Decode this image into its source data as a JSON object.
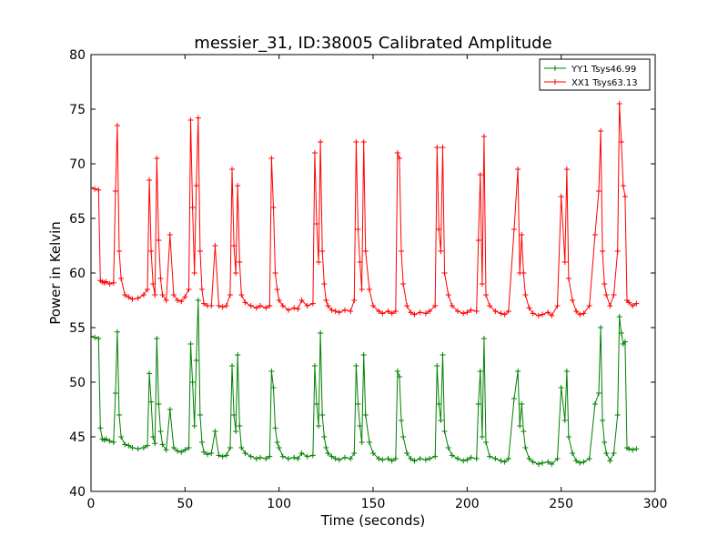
{
  "chart_data": {
    "type": "line",
    "title": "messier_31, ID:38005 Calibrated Amplitude",
    "xlabel": "Time (seconds)",
    "ylabel": "Power in Kelvin",
    "xlim": [
      0,
      300
    ],
    "ylim": [
      40,
      80
    ],
    "xticks": [
      "0",
      "50",
      "100",
      "150",
      "200",
      "250",
      "300"
    ],
    "yticks": [
      "40",
      "45",
      "50",
      "55",
      "60",
      "65",
      "70",
      "75",
      "80"
    ],
    "grid": false,
    "legend_position": "top-right",
    "series": [
      {
        "name": "YY1 Tsys46.99",
        "color": "#008000",
        "marker": "+",
        "x": [
          0,
          2,
          4,
          5,
          6,
          7,
          8,
          10,
          12,
          13,
          14,
          15,
          16,
          18,
          20,
          22,
          25,
          28,
          30,
          31,
          32,
          33,
          34,
          35,
          36,
          37,
          38,
          40,
          42,
          44,
          46,
          48,
          50,
          52,
          53,
          54,
          55,
          56,
          57,
          58,
          59,
          60,
          62,
          64,
          66,
          68,
          70,
          72,
          74,
          75,
          76,
          77,
          78,
          79,
          80,
          82,
          85,
          88,
          90,
          93,
          95,
          96,
          97,
          98,
          99,
          100,
          102,
          105,
          108,
          110,
          112,
          115,
          118,
          119,
          120,
          121,
          122,
          123,
          124,
          125,
          126,
          128,
          130,
          132,
          135,
          138,
          140,
          141,
          142,
          143,
          144,
          145,
          146,
          148,
          150,
          153,
          155,
          158,
          160,
          162,
          163,
          164,
          165,
          166,
          168,
          170,
          172,
          175,
          178,
          180,
          183,
          184,
          185,
          186,
          187,
          188,
          190,
          192,
          195,
          198,
          200,
          202,
          205,
          206,
          207,
          208,
          209,
          210,
          212,
          215,
          218,
          220,
          222,
          225,
          227,
          228,
          229,
          230,
          231,
          233,
          235,
          238,
          240,
          243,
          245,
          248,
          250,
          252,
          253,
          254,
          256,
          258,
          260,
          262,
          265,
          268,
          270,
          271,
          272,
          273,
          274,
          276,
          278,
          280,
          281,
          282,
          283,
          284,
          285,
          286,
          288,
          290
        ],
        "values": [
          54.2,
          54.1,
          54.0,
          45.8,
          44.8,
          44.7,
          44.8,
          44.6,
          44.5,
          49.0,
          54.6,
          47.0,
          45.0,
          44.3,
          44.2,
          44.0,
          43.9,
          44.0,
          44.2,
          50.8,
          48.2,
          45.0,
          44.4,
          54.0,
          48.0,
          45.5,
          44.3,
          43.8,
          47.5,
          44.0,
          43.7,
          43.6,
          43.8,
          44.0,
          53.5,
          50.0,
          46.0,
          52.0,
          57.5,
          47.0,
          44.5,
          43.6,
          43.4,
          43.5,
          45.5,
          43.3,
          43.2,
          43.3,
          44.0,
          51.5,
          47.0,
          45.5,
          52.5,
          46.0,
          44.0,
          43.5,
          43.2,
          43.0,
          43.1,
          43.0,
          43.2,
          51.0,
          49.5,
          45.8,
          44.5,
          44.0,
          43.2,
          43.0,
          43.1,
          43.0,
          43.5,
          43.2,
          43.3,
          51.5,
          48.0,
          46.0,
          54.5,
          47.0,
          45.0,
          44.0,
          43.5,
          43.2,
          43.0,
          42.9,
          43.1,
          43.0,
          43.5,
          51.5,
          48.0,
          46.0,
          44.5,
          52.5,
          47.0,
          44.5,
          43.5,
          43.0,
          42.9,
          43.0,
          42.8,
          43.0,
          51.0,
          50.5,
          46.5,
          45.0,
          43.5,
          43.0,
          42.8,
          43.0,
          42.9,
          43.0,
          43.2,
          51.5,
          48.0,
          46.5,
          52.5,
          45.5,
          44.0,
          43.3,
          43.0,
          42.8,
          42.9,
          43.1,
          43.0,
          48.0,
          51.0,
          45.0,
          54.0,
          44.5,
          43.2,
          43.0,
          42.8,
          42.7,
          43.0,
          48.5,
          51.0,
          46.0,
          48.0,
          45.5,
          44.0,
          43.0,
          42.7,
          42.5,
          42.6,
          42.7,
          42.5,
          43.0,
          49.5,
          46.5,
          51.0,
          45.0,
          43.5,
          42.8,
          42.6,
          42.7,
          43.0,
          48.0,
          49.0,
          55.0,
          46.5,
          44.5,
          43.5,
          42.8,
          43.5,
          47.0,
          56.0,
          54.5,
          53.5,
          53.7,
          44.0,
          43.9,
          43.8,
          43.9
        ]
      },
      {
        "name": "XX1 Tsys63.13",
        "color": "#ff0000",
        "marker": "+",
        "x": [
          0,
          2,
          4,
          5,
          6,
          7,
          8,
          10,
          12,
          13,
          14,
          15,
          16,
          18,
          20,
          22,
          25,
          28,
          30,
          31,
          32,
          33,
          34,
          35,
          36,
          37,
          38,
          40,
          42,
          44,
          46,
          48,
          50,
          52,
          53,
          54,
          55,
          56,
          57,
          58,
          59,
          60,
          62,
          64,
          66,
          68,
          70,
          72,
          74,
          75,
          76,
          77,
          78,
          79,
          80,
          82,
          85,
          88,
          90,
          93,
          95,
          96,
          97,
          98,
          99,
          100,
          102,
          105,
          108,
          110,
          112,
          115,
          118,
          119,
          120,
          121,
          122,
          123,
          124,
          125,
          126,
          128,
          130,
          132,
          135,
          138,
          140,
          141,
          142,
          143,
          144,
          145,
          146,
          148,
          150,
          153,
          155,
          158,
          160,
          162,
          163,
          164,
          165,
          166,
          168,
          170,
          172,
          175,
          178,
          180,
          183,
          184,
          185,
          186,
          187,
          188,
          190,
          192,
          195,
          198,
          200,
          202,
          205,
          206,
          207,
          208,
          209,
          210,
          212,
          215,
          218,
          220,
          222,
          225,
          227,
          228,
          229,
          230,
          231,
          233,
          235,
          238,
          240,
          243,
          245,
          248,
          250,
          252,
          253,
          254,
          256,
          258,
          260,
          262,
          265,
          268,
          270,
          271,
          272,
          273,
          274,
          276,
          278,
          280,
          281,
          282,
          283,
          284,
          285,
          286,
          288,
          290
        ],
        "values": [
          67.8,
          67.7,
          67.6,
          59.3,
          59.2,
          59.1,
          59.2,
          59.0,
          59.1,
          67.5,
          73.5,
          62.0,
          59.5,
          58.0,
          57.8,
          57.6,
          57.7,
          58.0,
          58.5,
          68.5,
          62.0,
          59.0,
          58.0,
          70.5,
          63.0,
          59.5,
          58.0,
          57.5,
          63.5,
          58.0,
          57.5,
          57.4,
          57.8,
          58.5,
          74.0,
          66.0,
          60.0,
          68.0,
          74.2,
          62.0,
          58.5,
          57.2,
          57.0,
          57.0,
          62.5,
          57.0,
          56.9,
          57.0,
          58.0,
          69.5,
          62.5,
          60.0,
          68.0,
          61.0,
          58.0,
          57.3,
          57.0,
          56.8,
          57.0,
          56.8,
          57.0,
          70.5,
          66.0,
          60.0,
          58.5,
          57.5,
          57.0,
          56.6,
          56.8,
          56.7,
          57.5,
          57.0,
          57.2,
          71.0,
          64.5,
          61.0,
          72.0,
          62.0,
          59.0,
          57.5,
          57.0,
          56.6,
          56.5,
          56.4,
          56.6,
          56.5,
          57.5,
          72.0,
          64.0,
          61.0,
          58.5,
          72.0,
          62.0,
          58.5,
          57.0,
          56.5,
          56.3,
          56.5,
          56.3,
          56.5,
          71.0,
          70.5,
          62.0,
          59.0,
          57.0,
          56.4,
          56.2,
          56.4,
          56.3,
          56.5,
          57.0,
          71.5,
          64.0,
          62.0,
          71.5,
          60.0,
          58.0,
          57.0,
          56.5,
          56.3,
          56.4,
          56.6,
          56.5,
          63.0,
          69.0,
          59.0,
          72.5,
          58.0,
          57.0,
          56.5,
          56.3,
          56.2,
          56.5,
          64.0,
          69.5,
          60.0,
          63.5,
          60.0,
          58.0,
          56.8,
          56.3,
          56.1,
          56.2,
          56.4,
          56.1,
          57.0,
          67.0,
          61.0,
          69.5,
          59.5,
          57.5,
          56.5,
          56.2,
          56.3,
          57.0,
          63.5,
          67.5,
          73.0,
          62.0,
          59.0,
          58.0,
          57.0,
          58.0,
          62.0,
          75.5,
          72.0,
          68.0,
          67.0,
          57.5,
          57.3,
          57.0,
          57.2
        ]
      }
    ]
  }
}
